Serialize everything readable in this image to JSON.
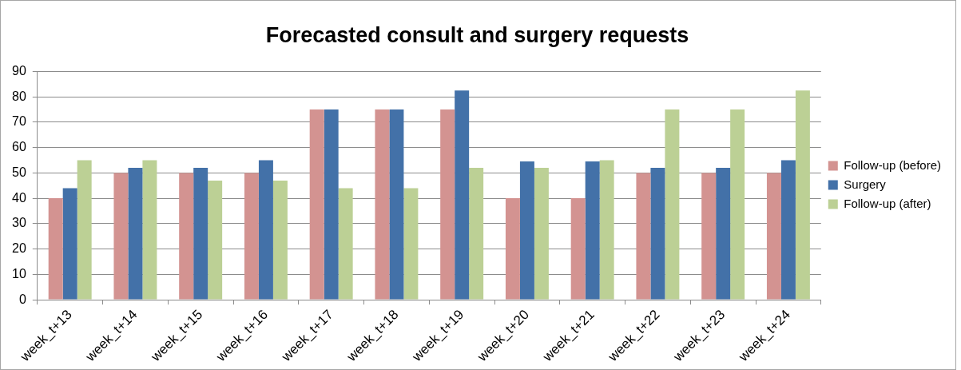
{
  "chart_data": {
    "type": "bar",
    "title": "Forecasted consult and surgery requests",
    "categories": [
      "week_t+13",
      "week_t+14",
      "week_t+15",
      "week_t+16",
      "week_t+17",
      "week_t+18",
      "week_t+19",
      "week_t+20",
      "week_t+21",
      "week_t+22",
      "week_t+23",
      "week_t+24"
    ],
    "series": [
      {
        "name": "Follow-up (before)",
        "color": "#d39391",
        "values": [
          40,
          50,
          50,
          50,
          75,
          75,
          75,
          40,
          40,
          50,
          50,
          50
        ]
      },
      {
        "name": "Surgery",
        "color": "#4371a8",
        "values": [
          44,
          52,
          52,
          55,
          75,
          75,
          82.5,
          54.5,
          54.5,
          52,
          52,
          55
        ]
      },
      {
        "name": "Follow-up (after)",
        "color": "#bcd095",
        "values": [
          55,
          55,
          47,
          47,
          44,
          44,
          52,
          52,
          55,
          75,
          75,
          82.5
        ]
      }
    ],
    "ylim": [
      0,
      90
    ],
    "yticks": [
      0,
      10,
      20,
      30,
      40,
      50,
      60,
      70,
      80,
      90
    ],
    "grid": "y",
    "legend": "right"
  }
}
